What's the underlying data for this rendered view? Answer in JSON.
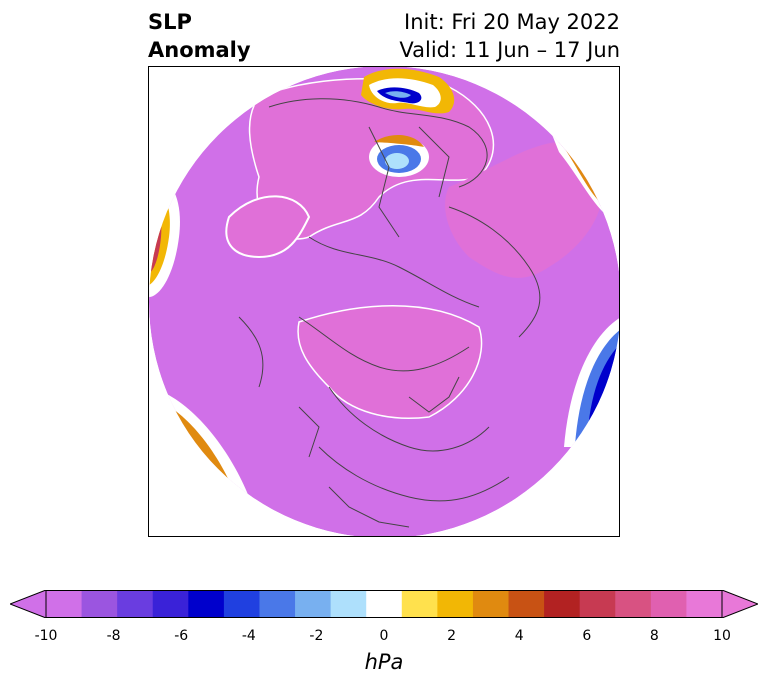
{
  "title": {
    "left_line1": "SLP",
    "left_line2": "Anomaly",
    "right_line1": "Init: Fri 20 May 2022",
    "right_line2": "Valid: 11 Jun – 17 Jun"
  },
  "colorbar": {
    "label": "hPa",
    "ticks": [
      "-10",
      "-8",
      "-6",
      "-4",
      "-2",
      "0",
      "2",
      "4",
      "6",
      "8",
      "10"
    ],
    "colors": [
      "#d070e8",
      "#9b55e0",
      "#6a3de0",
      "#3a22d8",
      "#0000cc",
      "#2040e0",
      "#4a78e8",
      "#78b0f0",
      "#aee0fc",
      "#ffffff",
      "#ffe14d",
      "#f2b705",
      "#e08a10",
      "#c85214",
      "#b22222",
      "#c73a52",
      "#d85282",
      "#e060b0",
      "#e878d8"
    ]
  },
  "map": {
    "background_color": "#d070e8",
    "positive_color": "#e070d8",
    "coast_color": "#444444"
  }
}
